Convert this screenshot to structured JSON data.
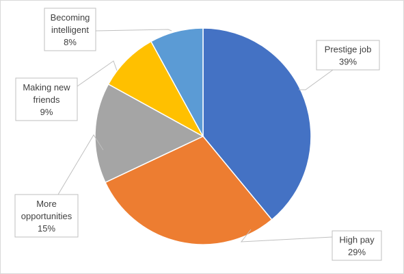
{
  "chart_data": {
    "type": "pie",
    "title": "",
    "slices": [
      {
        "name": "Prestige job",
        "value": 39,
        "label": "39%",
        "color": "#4472C4"
      },
      {
        "name": "High pay",
        "value": 29,
        "label": "29%",
        "color": "#ED7D31"
      },
      {
        "name": "More opportunities",
        "value": 15,
        "label": "15%",
        "color": "#A5A5A5"
      },
      {
        "name": "Making new friends",
        "value": 9,
        "label": "9%",
        "color": "#FFC000"
      },
      {
        "name": "Becoming intelligent",
        "value": 8,
        "label": "8%",
        "color": "#5B9BD5"
      }
    ],
    "label_lines": [
      [
        "Prestige job"
      ],
      [
        "High pay"
      ],
      [
        "More",
        "opportunities"
      ],
      [
        "Making new",
        "friends"
      ],
      [
        "Becoming",
        "intelligent"
      ]
    ],
    "start_angle": "12 o'clock",
    "direction": "clockwise",
    "legend": "none",
    "data_labels": "outside-with-leader-lines"
  }
}
